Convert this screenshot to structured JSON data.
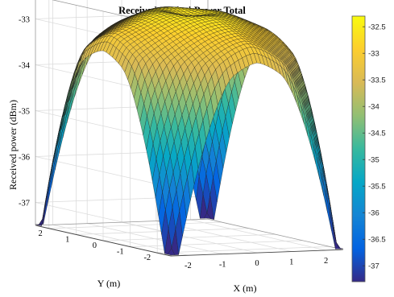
{
  "chart_data": {
    "type": "surface",
    "title": "Received Optical Power Total",
    "xlabel": "X (m)",
    "ylabel": "Y (m)",
    "zlabel": "Received power (dBm)",
    "x_ticks": [
      "-2",
      "-1",
      "0",
      "1",
      "2"
    ],
    "y_ticks": [
      "2",
      "1",
      "0",
      "-1",
      "-2"
    ],
    "z_ticks": [
      "-33",
      "-34",
      "-35",
      "-36",
      "-37"
    ],
    "x_range": [
      -2.5,
      2.5
    ],
    "y_range": [
      -2.5,
      2.5
    ],
    "z_range": [
      -37.5,
      -32.5
    ],
    "value_range": [
      -37.3,
      -32.3
    ],
    "grid": true,
    "colormap": "parula",
    "colorbar": {
      "position": "right",
      "ticks": [
        "-32.5",
        "-33",
        "-33.5",
        "-34",
        "-34.5",
        "-35",
        "-35.5",
        "-36",
        "-36.5",
        "-37"
      ]
    },
    "colors": [
      "#352a87",
      "#0363e1",
      "#1485d4",
      "#06a7c6",
      "#38b99e",
      "#92bf73",
      "#d9ba56",
      "#fcce2e",
      "#f9fb0e"
    ]
  }
}
